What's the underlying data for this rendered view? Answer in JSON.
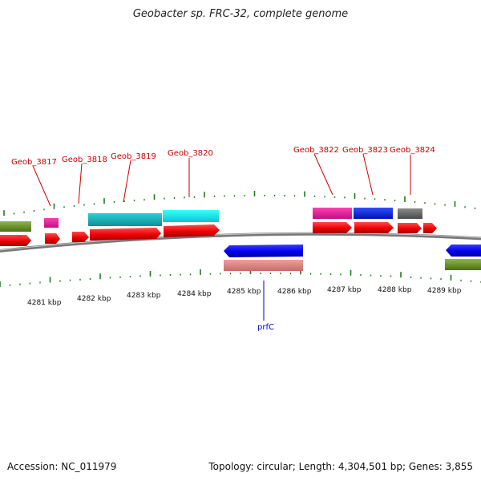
{
  "title": "Geobacter sp. FRC-32, complete genome",
  "footer": {
    "accession": "Accession: NC_011979",
    "summary": "Topology: circular; Length: 4,304,501 bp; Genes: 3,855"
  },
  "map": {
    "kbp_labels": [
      "4281 kbp",
      "4282 kbp",
      "4283 kbp",
      "4284 kbp",
      "4285 kbp",
      "4286 kbp",
      "4287 kbp",
      "4288 kbp",
      "4289 kbp"
    ],
    "gene_labels_top": [
      "Geob_3817",
      "Geob_3818",
      "Geob_3819",
      "Geob_3820",
      "Geob_3822",
      "Geob_3823",
      "Geob_3824"
    ],
    "gene_labels_bottom": [
      "prfC"
    ]
  },
  "colors": {
    "forward_cds": "#ff0000",
    "reverse_cds": "#0000ff",
    "tick": "#1f7a1f",
    "backbone": "#888888",
    "label_top": "#cc0000",
    "label_bottom": "#0000cc"
  }
}
